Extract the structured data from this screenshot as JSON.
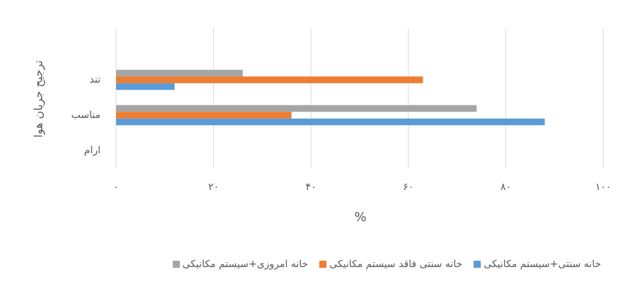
{
  "chart_data": {
    "type": "hbar",
    "categories": [
      "تند",
      "مناسب",
      "ارام"
    ],
    "series": [
      {
        "name": "خانه امروزی+سیستم مکانیکی",
        "color": "#a5a5a5",
        "values": [
          26,
          74,
          0
        ]
      },
      {
        "name": "خانه سنتی فاقد سیستم مکانیکی",
        "color": "#ed7d31",
        "values": [
          63,
          36,
          0
        ]
      },
      {
        "name": "خانه سنتی+سیستم مکانیکی",
        "color": "#5b9bd5",
        "values": [
          12,
          88,
          0
        ]
      }
    ],
    "legend_order": [
      2,
      1,
      0
    ],
    "xlim": [
      0,
      100
    ],
    "xticks": [
      {
        "value": 0,
        "label": "۰"
      },
      {
        "value": 20,
        "label": "۲۰"
      },
      {
        "value": 40,
        "label": "۴۰"
      },
      {
        "value": 60,
        "label": "۶۰"
      },
      {
        "value": 80,
        "label": "۸۰"
      },
      {
        "value": 100,
        "label": "۱۰۰"
      }
    ],
    "xlabel": "%",
    "ylabel": "ترجیح جریان هوا",
    "grid": true,
    "legend": "bottom"
  }
}
